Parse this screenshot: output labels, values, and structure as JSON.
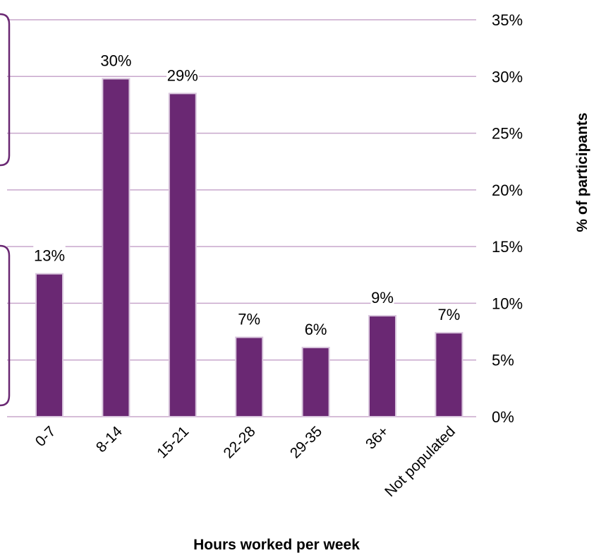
{
  "chart_data": {
    "type": "bar",
    "title": "",
    "xlabel": "Hours worked per week",
    "ylabel": "% of participants",
    "categories": [
      "0-7",
      "8-14",
      "15-21",
      "22-28",
      "29-35",
      "36+",
      "Not populated"
    ],
    "values": [
      12.6,
      29.8,
      28.5,
      7.0,
      6.1,
      8.9,
      7.4
    ],
    "data_labels": [
      "13%",
      "30%",
      "29%",
      "7%",
      "6%",
      "9%",
      "7%"
    ],
    "ylim": [
      0,
      35
    ],
    "y_ticks": [
      0,
      5,
      10,
      15,
      20,
      25,
      30,
      35
    ],
    "y_tick_labels": [
      "0%",
      "5%",
      "10%",
      "15%",
      "20%",
      "25%",
      "30%",
      "35%"
    ],
    "y_axis_side": "right",
    "grid": true,
    "colors": {
      "bar": "#6a2873",
      "bar_edge": "#d9c6dd",
      "grid": "#c8a7cc",
      "side_brackets": "#6a2873"
    }
  }
}
